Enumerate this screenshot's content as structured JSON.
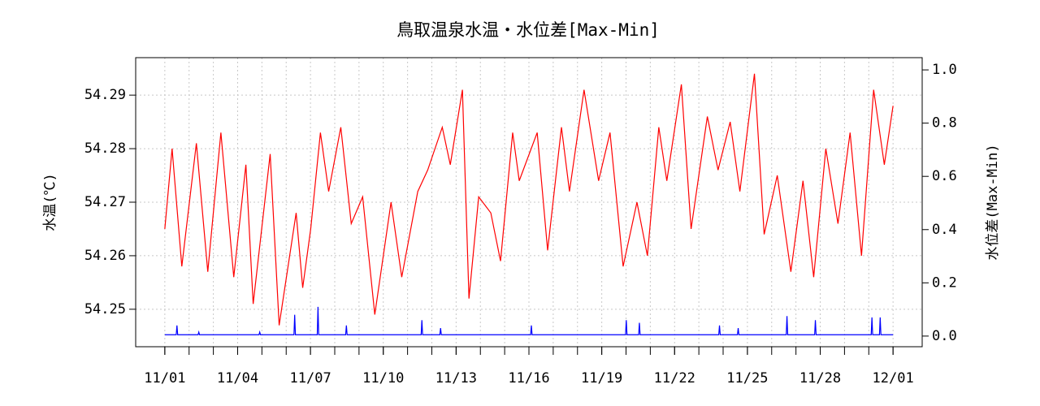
{
  "chart_data": {
    "type": "line",
    "title": "鳥取温泉水温・水位差[Max-Min]",
    "ylabel": "水温(℃)",
    "y2label": "水位差(Max-Min)",
    "xlim": [
      -1.2,
      31.2
    ],
    "xticks": [
      {
        "value": 0,
        "label": "11/01"
      },
      {
        "value": 3,
        "label": "11/04"
      },
      {
        "value": 6,
        "label": "11/07"
      },
      {
        "value": 9,
        "label": "11/10"
      },
      {
        "value": 12,
        "label": "11/13"
      },
      {
        "value": 15,
        "label": "11/16"
      },
      {
        "value": 18,
        "label": "11/19"
      },
      {
        "value": 21,
        "label": "11/22"
      },
      {
        "value": 24,
        "label": "11/25"
      },
      {
        "value": 27,
        "label": "11/28"
      },
      {
        "value": 30,
        "label": "12/01"
      }
    ],
    "xminorticks": [
      0,
      1,
      2,
      3,
      4,
      5,
      6,
      7,
      8,
      9,
      10,
      11,
      12,
      13,
      14,
      15,
      16,
      17,
      18,
      19,
      20,
      21,
      22,
      23,
      24,
      25,
      26,
      27,
      28,
      29,
      30
    ],
    "ylim": [
      54.243,
      54.297
    ],
    "yticks": [
      54.25,
      54.26,
      54.27,
      54.28,
      54.29
    ],
    "y2lim": [
      -0.04,
      1.046
    ],
    "y2ticks": [
      {
        "value": 0,
        "label": "0.0"
      },
      0.2,
      0.4,
      0.6,
      0.8,
      {
        "value": 1,
        "label": "1.0"
      }
    ],
    "grid": true,
    "series": [
      {
        "color": "#ff0000",
        "axis": "y",
        "x": [
          0.0,
          0.3,
          0.7,
          1.3,
          1.77,
          2.31,
          2.84,
          3.34,
          3.64,
          4.34,
          4.71,
          5.41,
          5.68,
          6.01,
          6.41,
          6.75,
          7.25,
          7.68,
          8.15,
          8.65,
          9.32,
          9.76,
          10.42,
          10.83,
          11.43,
          11.76,
          12.26,
          12.53,
          12.93,
          13.43,
          13.83,
          14.33,
          14.6,
          15.34,
          15.77,
          16.34,
          16.67,
          17.27,
          17.87,
          18.34,
          18.88,
          19.45,
          19.88,
          20.35,
          20.68,
          21.28,
          21.68,
          22.35,
          22.79,
          23.29,
          23.69,
          24.29,
          24.69,
          25.23,
          25.79,
          26.29,
          26.73,
          27.23,
          27.73,
          28.23,
          28.7,
          29.2,
          29.64,
          30.0
        ],
        "values": [
          54.265,
          54.28,
          54.258,
          54.281,
          54.257,
          54.283,
          54.256,
          54.277,
          54.251,
          54.279,
          54.247,
          54.268,
          54.254,
          54.265,
          54.283,
          54.272,
          54.284,
          54.266,
          54.271,
          54.249,
          54.27,
          54.256,
          54.272,
          54.276,
          54.284,
          54.277,
          54.291,
          54.252,
          54.271,
          54.268,
          54.259,
          54.283,
          54.274,
          54.283,
          54.261,
          54.284,
          54.272,
          54.291,
          54.274,
          54.283,
          54.258,
          54.27,
          54.26,
          54.284,
          54.274,
          54.292,
          54.265,
          54.286,
          54.276,
          54.285,
          54.272,
          54.294,
          54.264,
          54.275,
          54.257,
          54.274,
          54.256,
          54.28,
          54.266,
          54.283,
          54.26,
          54.291,
          54.277,
          54.288
        ]
      },
      {
        "color": "#0000ff",
        "axis": "y2",
        "x": [
          0.0,
          0.47,
          0.5,
          0.53,
          1.37,
          1.4,
          1.43,
          3.88,
          3.91,
          3.94,
          5.32,
          5.35,
          5.38,
          6.28,
          6.31,
          6.34,
          7.45,
          7.48,
          7.51,
          10.56,
          10.59,
          10.62,
          11.33,
          11.36,
          11.39,
          15.07,
          15.1,
          15.13,
          18.98,
          19.01,
          19.04,
          19.52,
          19.55,
          19.58,
          22.82,
          22.85,
          22.88,
          23.59,
          23.62,
          23.65,
          25.6,
          25.63,
          25.66,
          26.77,
          26.8,
          26.83,
          29.1,
          29.13,
          29.16,
          29.44,
          29.47,
          29.5,
          30.0
        ],
        "values": [
          0.005,
          0.005,
          0.04,
          0.005,
          0.005,
          0.015,
          0.005,
          0.005,
          0.015,
          0.005,
          0.005,
          0.08,
          0.005,
          0.005,
          0.11,
          0.005,
          0.005,
          0.04,
          0.005,
          0.005,
          0.06,
          0.005,
          0.005,
          0.03,
          0.005,
          0.005,
          0.04,
          0.005,
          0.005,
          0.06,
          0.005,
          0.005,
          0.05,
          0.005,
          0.005,
          0.04,
          0.005,
          0.005,
          0.03,
          0.005,
          0.005,
          0.075,
          0.005,
          0.005,
          0.06,
          0.005,
          0.005,
          0.07,
          0.005,
          0.005,
          0.07,
          0.005,
          0.005
        ]
      }
    ]
  }
}
